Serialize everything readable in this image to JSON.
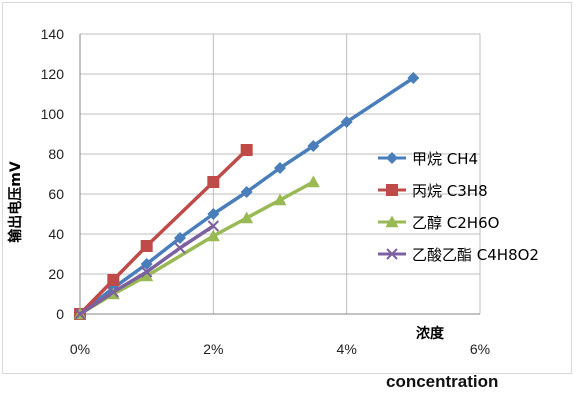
{
  "chart_data": {
    "type": "line",
    "xlabel": "浓度",
    "ylabel": "输出电压mV",
    "x_ticks": [
      "0%",
      "2%",
      "4%",
      "6%"
    ],
    "y_ticks": [
      "0",
      "20",
      "40",
      "60",
      "80",
      "100",
      "120",
      "140"
    ],
    "xlim": [
      0,
      6
    ],
    "ylim": [
      0,
      140
    ],
    "grid": true,
    "legend_position": "right",
    "series": [
      {
        "name": "甲烷 CH4",
        "color": "#4a7ebb",
        "marker": "diamond",
        "x": [
          0,
          0.5,
          1,
          1.5,
          2,
          2.5,
          3,
          3.5,
          4,
          5
        ],
        "y": [
          0,
          13,
          25,
          38,
          50,
          61,
          73,
          84,
          96,
          118
        ]
      },
      {
        "name": "丙烷 C3H8",
        "color": "#be4b48",
        "marker": "square",
        "x": [
          0,
          0.5,
          1,
          2,
          2.5
        ],
        "y": [
          0,
          17,
          34,
          66,
          82
        ]
      },
      {
        "name": "乙醇 C2H6O",
        "color": "#98b954",
        "marker": "triangle",
        "x": [
          0,
          0.5,
          1,
          2,
          2.5,
          3,
          3.5
        ],
        "y": [
          0,
          10,
          19,
          39,
          48,
          57,
          66
        ]
      },
      {
        "name": "乙酸乙酯 C4H8O2",
        "color": "#7d60a0",
        "marker": "x",
        "x": [
          0,
          0.5,
          1,
          1.5,
          2
        ],
        "y": [
          0,
          11,
          21,
          33,
          44
        ]
      }
    ]
  },
  "footer_label": "concentration"
}
